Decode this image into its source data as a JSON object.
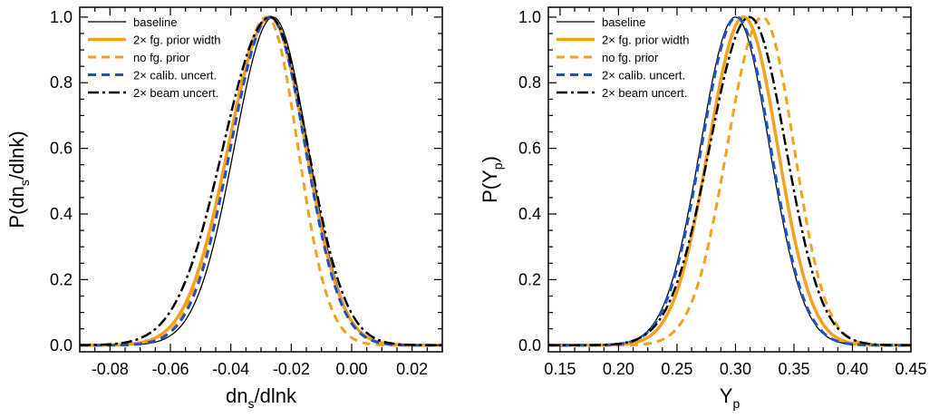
{
  "colors": {
    "black": "#000000",
    "orange": "#F7A01E",
    "blue": "#1E50C8"
  },
  "chart_data": [
    {
      "type": "line",
      "name": "dns-dlnk-panel",
      "xlabel": "dn_s/dlnk",
      "xlabel_main": "dn",
      "xlabel_sub": "s",
      "xlabel_rest": "/dlnk",
      "ylabel": "P(dn_s/dlnk)",
      "ylabel_pre": "P(dn",
      "ylabel_sub": "s",
      "ylabel_post": "/dlnk)",
      "xlim": [
        -0.09,
        0.03
      ],
      "ylim": [
        -0.02,
        1.03
      ],
      "xticks": [
        -0.08,
        -0.06,
        -0.04,
        -0.02,
        0.0,
        0.02
      ],
      "xtick_labels": [
        "-0.08",
        "-0.06",
        "-0.04",
        "-0.02",
        "0.00",
        "0.02"
      ],
      "yticks": [
        0.0,
        0.2,
        0.4,
        0.6,
        0.8,
        1.0
      ],
      "ytick_labels": [
        "0.0",
        "0.2",
        "0.4",
        "0.6",
        "0.8",
        "1.0"
      ],
      "series": [
        {
          "name": "baseline",
          "legend": "baseline",
          "color": "black",
          "dash": "solid",
          "width": 1.3,
          "peak": -0.026,
          "sigma_left": 0.0128,
          "sigma_right": 0.0115
        },
        {
          "name": "2x-fg-prior-width",
          "legend": "2× fg. prior width",
          "color": "orange",
          "dash": "solid",
          "width": 3.5,
          "peak": -0.027,
          "sigma_left": 0.0138,
          "sigma_right": 0.0118
        },
        {
          "name": "no-fg-prior",
          "legend": "no fg. prior",
          "color": "orange",
          "dash": "dash",
          "width": 3,
          "peak": -0.028,
          "sigma_left": 0.0128,
          "sigma_right": 0.0102
        },
        {
          "name": "2x-calib-uncert",
          "legend": "2× calib. uncert.",
          "color": "blue",
          "dash": "dash",
          "width": 3,
          "peak": -0.027,
          "sigma_left": 0.013,
          "sigma_right": 0.0116
        },
        {
          "name": "2x-beam-uncert",
          "legend": "2× beam uncert.",
          "color": "black",
          "dash": "dashdot",
          "width": 2.5,
          "peak": -0.027,
          "sigma_left": 0.0155,
          "sigma_right": 0.0125
        }
      ]
    },
    {
      "type": "line",
      "name": "yp-panel",
      "xlabel": "Y_p",
      "xlabel_main": "Y",
      "xlabel_sub": "p",
      "xlabel_rest": "",
      "ylabel": "P(Y_p)",
      "ylabel_pre": "P(Y",
      "ylabel_sub": "p",
      "ylabel_post": ")",
      "xlim": [
        0.14,
        0.45
      ],
      "ylim": [
        -0.02,
        1.03
      ],
      "xticks": [
        0.15,
        0.2,
        0.25,
        0.3,
        0.35,
        0.4,
        0.45
      ],
      "xtick_labels": [
        "0.15",
        "0.20",
        "0.25",
        "0.30",
        "0.35",
        "0.40",
        "0.45"
      ],
      "yticks": [
        0.0,
        0.2,
        0.4,
        0.6,
        0.8,
        1.0
      ],
      "ytick_labels": [
        "0.0",
        "0.2",
        "0.4",
        "0.6",
        "0.8",
        "1.0"
      ],
      "series": [
        {
          "name": "baseline",
          "legend": "baseline",
          "color": "black",
          "dash": "solid",
          "width": 1.3,
          "peak": 0.3,
          "sigma_left": 0.03,
          "sigma_right": 0.029
        },
        {
          "name": "2x-fg-prior-width",
          "legend": "2× fg. prior width",
          "color": "orange",
          "dash": "solid",
          "width": 3.5,
          "peak": 0.307,
          "sigma_left": 0.03,
          "sigma_right": 0.029
        },
        {
          "name": "no-fg-prior",
          "legend": "no fg. prior",
          "color": "orange",
          "dash": "dash",
          "width": 3,
          "peak": 0.323,
          "sigma_left": 0.03,
          "sigma_right": 0.027
        },
        {
          "name": "2x-calib-uncert",
          "legend": "2× calib. uncert.",
          "color": "blue",
          "dash": "dash",
          "width": 3,
          "peak": 0.301,
          "sigma_left": 0.03,
          "sigma_right": 0.029
        },
        {
          "name": "2x-beam-uncert",
          "legend": "2× beam uncert.",
          "color": "black",
          "dash": "dashdot",
          "width": 2.5,
          "peak": 0.312,
          "sigma_left": 0.034,
          "sigma_right": 0.031
        }
      ]
    }
  ]
}
